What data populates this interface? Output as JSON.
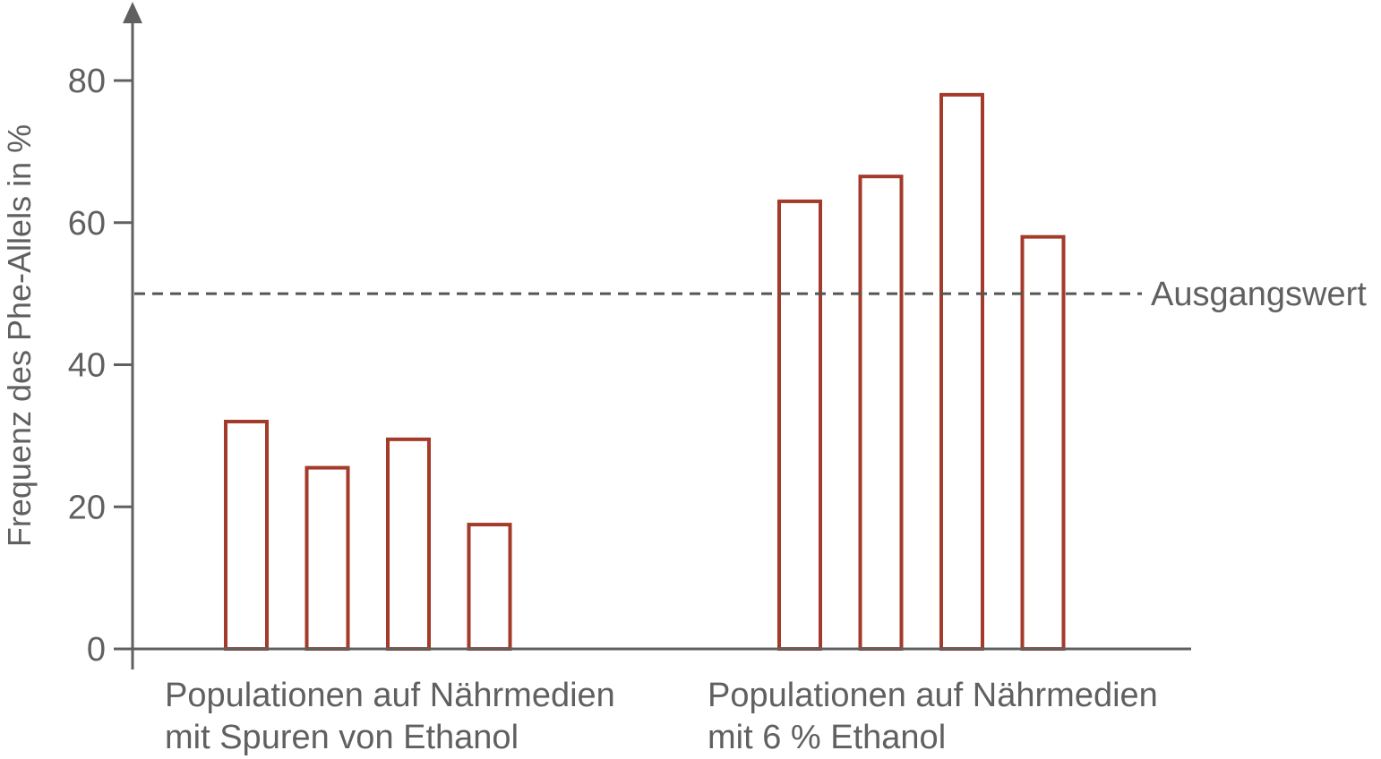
{
  "chart_data": {
    "type": "bar",
    "title": "",
    "xlabel": "",
    "ylabel": "Frequenz des Phe-Allels in %",
    "ylim": [
      0,
      80
    ],
    "yticks": [
      0,
      20,
      40,
      60,
      80
    ],
    "grid": false,
    "bar_style": "outline",
    "colors": {
      "bar_stroke": "#a33a2a",
      "axis": "#606060",
      "reference_line": "#555555"
    },
    "groups": [
      {
        "label_lines": [
          "Populationen auf Nährmedien",
          "mit Spuren von Ethanol"
        ],
        "values": [
          32,
          25.5,
          29.5,
          17.5
        ]
      },
      {
        "label_lines": [
          "Populationen auf Nährmedien",
          "mit 6 % Ethanol"
        ],
        "values": [
          63,
          66.5,
          78,
          58
        ]
      }
    ],
    "reference_line": {
      "value": 50,
      "label": "Ausgangswert",
      "style": "dashed"
    }
  }
}
